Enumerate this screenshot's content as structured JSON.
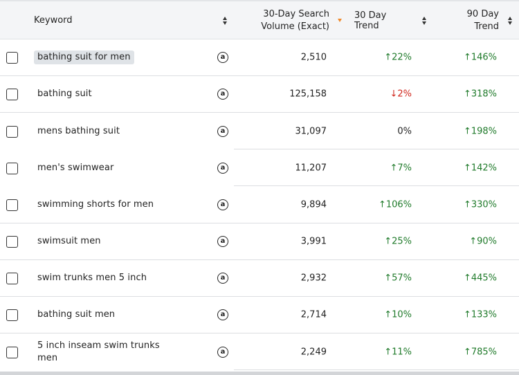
{
  "header": {
    "keyword": "Keyword",
    "volume_line1": "30-Day Search",
    "volume_line2": "Volume (Exact)",
    "trend30": "30 Day Trend",
    "trend90_line1": "90 Day",
    "trend90_line2": "Trend"
  },
  "rows": [
    {
      "keyword": "bathing suit for men",
      "icon": "amazon-icon",
      "volume": "2,510",
      "trend30": "↑22%",
      "trend30_dir": "up",
      "trend90": "↑146%",
      "trend90_dir": "up",
      "highlighted": true
    },
    {
      "keyword": "bathing suit",
      "icon": "amazon-icon",
      "volume": "125,158",
      "trend30": "↓2%",
      "trend30_dir": "down",
      "trend90": "↑318%",
      "trend90_dir": "up"
    },
    {
      "keyword": "mens bathing suit",
      "icon": "amazon-icon",
      "volume": "31,097",
      "trend30": "0%",
      "trend30_dir": "flat",
      "trend90": "↑198%",
      "trend90_dir": "up"
    },
    {
      "keyword": "men's swimwear",
      "icon": "amazon-icon",
      "volume": "11,207",
      "trend30": "↑7%",
      "trend30_dir": "up",
      "trend90": "↑142%",
      "trend90_dir": "up"
    },
    {
      "keyword": "swimming shorts for men",
      "icon": "amazon-icon",
      "volume": "9,894",
      "trend30": "↑106%",
      "trend30_dir": "up",
      "trend90": "↑330%",
      "trend90_dir": "up"
    },
    {
      "keyword": "swimsuit men",
      "icon": "amazon-icon",
      "volume": "3,991",
      "trend30": "↑25%",
      "trend30_dir": "up",
      "trend90": "↑90%",
      "trend90_dir": "up"
    },
    {
      "keyword": "swim trunks men 5 inch",
      "icon": "amazon-icon",
      "volume": "2,932",
      "trend30": "↑57%",
      "trend30_dir": "up",
      "trend90": "↑445%",
      "trend90_dir": "up"
    },
    {
      "keyword": "bathing suit men",
      "icon": "amazon-icon",
      "volume": "2,714",
      "trend30": "↑10%",
      "trend30_dir": "up",
      "trend90": "↑133%",
      "trend90_dir": "up"
    },
    {
      "keyword": "5 inch inseam swim trunks men",
      "icon": "amazon-icon",
      "volume": "2,249",
      "trend30": "↑11%",
      "trend30_dir": "up",
      "trend90": "↑785%",
      "trend90_dir": "up"
    }
  ],
  "colors": {
    "up": "#1f7a2a",
    "down": "#d0261c",
    "sort_active": "#f08a2c",
    "header_bg": "#f4f5f7",
    "highlight_bg": "#dfe3e7"
  }
}
